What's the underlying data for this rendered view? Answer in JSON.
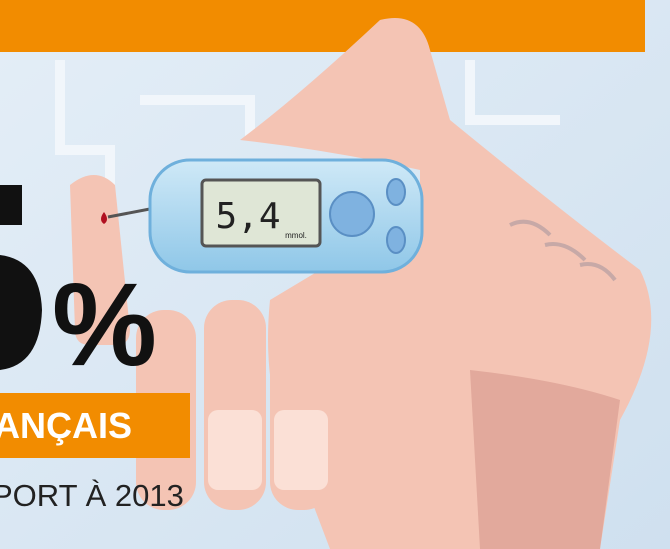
{
  "meter": {
    "reading": "5,4",
    "unit": "mmol."
  },
  "stat": {
    "symbol": "%",
    "label": "ANÇAIS",
    "caption": "PORT À 2013"
  }
}
